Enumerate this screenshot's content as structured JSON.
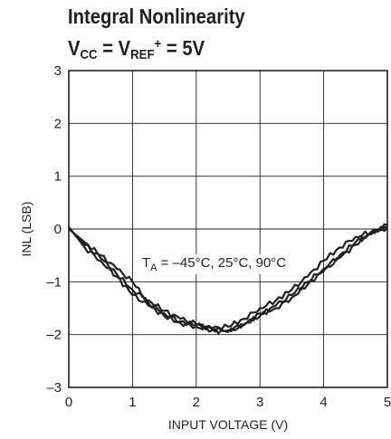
{
  "title": {
    "line1": "Integral Nonlinearity",
    "line2": {
      "v": "V",
      "cc": "CC",
      "eq1": " = V",
      "ref": "REF",
      "plus": "+",
      "eq2": " = 5V"
    }
  },
  "annotation": {
    "t": "T",
    "sub": "A",
    "rest": " = –45°C, 25°C, 90°C"
  },
  "chart_data": {
    "type": "line",
    "xlabel": "INPUT VOLTAGE (V)",
    "ylabel": "INL (LSB)",
    "xlim": [
      0,
      5
    ],
    "ylim": [
      -3,
      3
    ],
    "xticks": [
      "0",
      "1",
      "2",
      "3",
      "4",
      "5"
    ],
    "yticks": [
      "–3",
      "–2",
      "–1",
      "0",
      "1",
      "2",
      "3"
    ],
    "grid": true,
    "line_color": "#231f20",
    "series": [
      {
        "x": [
          0,
          0.25,
          0.5,
          0.75,
          1.0,
          1.25,
          1.5,
          1.75,
          2.0,
          2.25,
          2.5,
          2.75,
          3.0,
          3.25,
          3.5,
          3.75,
          4.0,
          4.25,
          4.5,
          4.75,
          5.0
        ],
        "y": [
          0.02,
          -0.3,
          -0.55,
          -0.85,
          -1.15,
          -1.35,
          -1.55,
          -1.7,
          -1.8,
          -1.9,
          -1.92,
          -1.8,
          -1.65,
          -1.45,
          -1.25,
          -1.0,
          -0.75,
          -0.5,
          -0.25,
          -0.1,
          0.08
        ]
      },
      {
        "x": [
          0,
          0.25,
          0.5,
          0.75,
          1.0,
          1.25,
          1.5,
          1.75,
          2.0,
          2.25,
          2.5,
          2.75,
          3.0,
          3.25,
          3.5,
          3.75,
          4.0,
          4.25,
          4.5,
          4.75,
          5.0
        ],
        "y": [
          0,
          -0.25,
          -0.5,
          -0.75,
          -1.0,
          -1.4,
          -1.6,
          -1.75,
          -1.82,
          -1.88,
          -1.85,
          -1.7,
          -1.5,
          -1.35,
          -1.15,
          -0.9,
          -0.6,
          -0.35,
          -0.15,
          -0.05,
          0.05
        ]
      },
      {
        "x": [
          0,
          0.25,
          0.5,
          0.75,
          1.0,
          1.25,
          1.5,
          1.75,
          2.0,
          2.25,
          2.5,
          2.75,
          3.0,
          3.25,
          3.5,
          3.75,
          4.0,
          4.25,
          4.5,
          4.75,
          5.0
        ],
        "y": [
          0.04,
          -0.35,
          -0.6,
          -0.9,
          -1.25,
          -1.45,
          -1.65,
          -1.78,
          -1.85,
          -1.92,
          -1.95,
          -1.82,
          -1.6,
          -1.5,
          -1.3,
          -1.05,
          -0.8,
          -0.55,
          -0.3,
          -0.05,
          0.02
        ]
      }
    ]
  }
}
